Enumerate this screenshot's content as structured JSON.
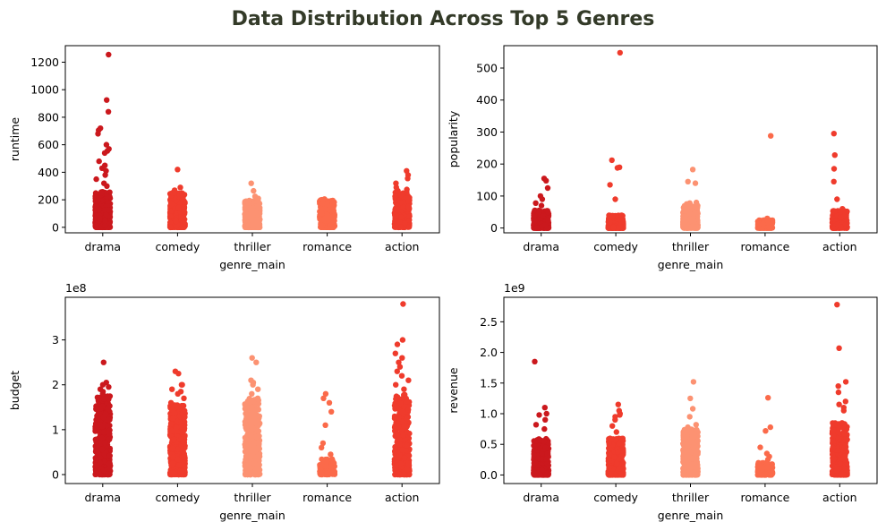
{
  "figure_title": "Data Distribution Across Top 5 Genres",
  "colors": {
    "drama": "#cb181d",
    "comedy": "#ef3b2c",
    "thriller": "#fc9272",
    "romance": "#fb6a4a",
    "action": "#ef3b2c"
  },
  "chart_data": [
    {
      "type": "scatter",
      "subtype": "strip",
      "xlabel": "genre_main",
      "ylabel": "runtime",
      "categories": [
        "drama",
        "comedy",
        "thriller",
        "romance",
        "action"
      ],
      "y_offset_label": "",
      "ylim": [
        -40,
        1320
      ],
      "yticks": [
        0,
        200,
        400,
        600,
        800,
        1000,
        1200
      ],
      "ytick_labels": [
        "0",
        "200",
        "400",
        "600",
        "800",
        "1000",
        "1200"
      ],
      "bulk": [
        [
          0,
          260
        ],
        [
          0,
          250
        ],
        [
          0,
          190
        ],
        [
          0,
          200
        ],
        [
          0,
          255
        ]
      ],
      "density": [
        1.0,
        1.0,
        0.9,
        0.7,
        0.8
      ],
      "outliers": [
        [
          [
            0,
            1255
          ],
          [
            0,
            925
          ],
          [
            0,
            840
          ],
          [
            0,
            720
          ],
          [
            0,
            705
          ],
          [
            0,
            680
          ],
          [
            0,
            600
          ],
          [
            0,
            570
          ],
          [
            0,
            555
          ],
          [
            0,
            540
          ],
          [
            0,
            480
          ],
          [
            0,
            450
          ],
          [
            0,
            430
          ],
          [
            0,
            410
          ],
          [
            0,
            380
          ],
          [
            0,
            350
          ],
          [
            0,
            320
          ],
          [
            0,
            300
          ]
        ],
        [
          [
            1,
            420
          ],
          [
            1,
            290
          ],
          [
            1,
            270
          ],
          [
            1,
            250
          ],
          [
            1,
            235
          ]
        ],
        [
          [
            2,
            320
          ],
          [
            2,
            265
          ],
          [
            2,
            225
          ],
          [
            2,
            210
          ],
          [
            2,
            195
          ]
        ],
        [
          [
            3,
            205
          ],
          [
            3,
            195
          ]
        ],
        [
          [
            4,
            410
          ],
          [
            4,
            380
          ],
          [
            4,
            355
          ],
          [
            4,
            320
          ],
          [
            4,
            290
          ],
          [
            4,
            275
          ],
          [
            4,
            265
          ]
        ]
      ]
    },
    {
      "type": "scatter",
      "subtype": "strip",
      "xlabel": "genre_main",
      "ylabel": "popularity",
      "categories": [
        "drama",
        "comedy",
        "thriller",
        "romance",
        "action"
      ],
      "y_offset_label": "",
      "ylim": [
        -15,
        570
      ],
      "yticks": [
        0,
        100,
        200,
        300,
        400,
        500
      ],
      "ytick_labels": [
        "0",
        "100",
        "200",
        "300",
        "400",
        "500"
      ],
      "bulk": [
        [
          0,
          55
        ],
        [
          0,
          40
        ],
        [
          0,
          70
        ],
        [
          0,
          25
        ],
        [
          0,
          55
        ]
      ],
      "density": [
        1.0,
        1.0,
        0.8,
        0.5,
        0.8
      ],
      "outliers": [
        [
          [
            0,
            155
          ],
          [
            0,
            148
          ],
          [
            0,
            125
          ],
          [
            0,
            100
          ],
          [
            0,
            90
          ],
          [
            0,
            78
          ],
          [
            0,
            70
          ]
        ],
        [
          [
            1,
            548
          ],
          [
            1,
            212
          ],
          [
            1,
            190
          ],
          [
            1,
            188
          ],
          [
            1,
            135
          ],
          [
            1,
            90
          ],
          [
            1,
            40
          ]
        ],
        [
          [
            2,
            183
          ],
          [
            2,
            145
          ],
          [
            2,
            140
          ],
          [
            2,
            80
          ],
          [
            2,
            78
          ],
          [
            2,
            75
          ]
        ],
        [
          [
            3,
            288
          ],
          [
            3,
            30
          ]
        ],
        [
          [
            4,
            295
          ],
          [
            4,
            228
          ],
          [
            4,
            185
          ],
          [
            4,
            145
          ],
          [
            4,
            90
          ],
          [
            4,
            60
          ],
          [
            4,
            50
          ]
        ]
      ]
    },
    {
      "type": "scatter",
      "subtype": "strip",
      "xlabel": "genre_main",
      "ylabel": "budget",
      "categories": [
        "drama",
        "comedy",
        "thriller",
        "romance",
        "action"
      ],
      "y_offset_label": "1e8",
      "ylim": [
        -0.2,
        3.95
      ],
      "yticks": [
        0,
        1,
        2,
        3
      ],
      "ytick_labels": [
        "0",
        "1",
        "2",
        "3"
      ],
      "bulk": [
        [
          0,
          1.75
        ],
        [
          0,
          1.55
        ],
        [
          0,
          1.7
        ],
        [
          0,
          0.35
        ],
        [
          0,
          1.8
        ]
      ],
      "density": [
        1.0,
        1.0,
        0.95,
        0.35,
        0.85
      ],
      "outliers": [
        [
          [
            0,
            2.5
          ],
          [
            0,
            2.05
          ],
          [
            0,
            2.0
          ],
          [
            0,
            1.95
          ],
          [
            0,
            1.9
          ],
          [
            0,
            1.85
          ],
          [
            0,
            1.8
          ]
        ],
        [
          [
            1,
            2.3
          ],
          [
            1,
            2.25
          ],
          [
            1,
            2.0
          ],
          [
            1,
            2.0
          ],
          [
            1,
            1.9
          ],
          [
            1,
            1.85
          ],
          [
            1,
            1.8
          ],
          [
            1,
            1.7
          ],
          [
            1,
            1.6
          ]
        ],
        [
          [
            2,
            2.6
          ],
          [
            2,
            2.5
          ],
          [
            2,
            2.1
          ],
          [
            2,
            2.05
          ],
          [
            2,
            2.0
          ],
          [
            2,
            1.9
          ],
          [
            2,
            1.8
          ]
        ],
        [
          [
            3,
            1.8
          ],
          [
            3,
            1.7
          ],
          [
            3,
            1.6
          ],
          [
            3,
            1.4
          ],
          [
            3,
            1.1
          ],
          [
            3,
            0.7
          ],
          [
            3,
            0.6
          ],
          [
            3,
            0.45
          ]
        ],
        [
          [
            4,
            3.8
          ],
          [
            4,
            3.0
          ],
          [
            4,
            2.9
          ],
          [
            4,
            2.7
          ],
          [
            4,
            2.6
          ],
          [
            4,
            2.5
          ],
          [
            4,
            2.4
          ],
          [
            4,
            2.3
          ],
          [
            4,
            2.2
          ],
          [
            4,
            2.1
          ],
          [
            4,
            2.0
          ],
          [
            4,
            1.9
          ]
        ]
      ]
    },
    {
      "type": "scatter",
      "subtype": "strip",
      "xlabel": "genre_main",
      "ylabel": "revenue",
      "categories": [
        "drama",
        "comedy",
        "thriller",
        "romance",
        "action"
      ],
      "y_offset_label": "1e9",
      "ylim": [
        -0.14,
        2.9
      ],
      "yticks": [
        0,
        0.5,
        1.0,
        1.5,
        2.0,
        2.5
      ],
      "ytick_labels": [
        "0.0",
        "0.5",
        "1.0",
        "1.5",
        "2.0",
        "2.5"
      ],
      "bulk": [
        [
          0,
          0.6
        ],
        [
          0,
          0.6
        ],
        [
          0,
          0.75
        ],
        [
          0,
          0.2
        ],
        [
          0,
          0.85
        ]
      ],
      "density": [
        1.0,
        1.0,
        0.9,
        0.35,
        0.85
      ],
      "outliers": [
        [
          [
            0,
            1.85
          ],
          [
            0,
            1.1
          ],
          [
            0,
            1.0
          ],
          [
            0,
            0.98
          ],
          [
            0,
            0.9
          ],
          [
            0,
            0.82
          ],
          [
            0,
            0.75
          ]
        ],
        [
          [
            1,
            1.15
          ],
          [
            1,
            1.05
          ],
          [
            1,
            1.0
          ],
          [
            1,
            0.98
          ],
          [
            1,
            0.95
          ],
          [
            1,
            0.9
          ],
          [
            1,
            0.8
          ],
          [
            1,
            0.7
          ]
        ],
        [
          [
            2,
            1.52
          ],
          [
            2,
            1.25
          ],
          [
            2,
            1.08
          ],
          [
            2,
            0.95
          ],
          [
            2,
            0.82
          ],
          [
            2,
            0.78
          ]
        ],
        [
          [
            3,
            1.26
          ],
          [
            3,
            0.78
          ],
          [
            3,
            0.72
          ],
          [
            3,
            0.45
          ],
          [
            3,
            0.35
          ],
          [
            3,
            0.3
          ],
          [
            3,
            0.25
          ]
        ],
        [
          [
            4,
            2.78
          ],
          [
            4,
            2.07
          ],
          [
            4,
            1.52
          ],
          [
            4,
            1.45
          ],
          [
            4,
            1.35
          ],
          [
            4,
            1.2
          ],
          [
            4,
            1.15
          ],
          [
            4,
            1.1
          ],
          [
            4,
            1.05
          ]
        ]
      ]
    }
  ]
}
